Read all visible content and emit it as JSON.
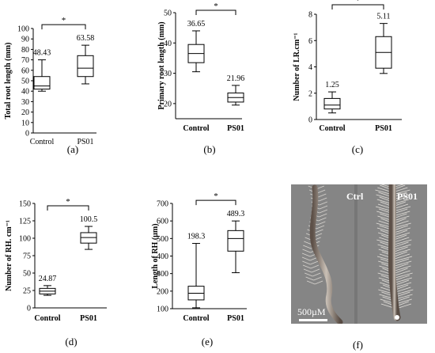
{
  "chart_data": [
    {
      "type": "box",
      "panel_label": "(a)",
      "ylabel": "Total root length (mm)",
      "categories": [
        "Control",
        "PS01"
      ],
      "category_style": "normal",
      "ylim": [
        0,
        100
      ],
      "yticks": [
        0,
        10,
        20,
        30,
        40,
        50,
        60,
        70,
        80,
        90,
        100
      ],
      "boxes": [
        {
          "category": "Control",
          "min": 40,
          "q1": 42,
          "median": 45,
          "q3": 54,
          "max": 70,
          "mean_label": "48.43"
        },
        {
          "category": "PS01",
          "min": 47,
          "q1": 54,
          "median": 62,
          "q3": 74,
          "max": 84,
          "mean_label": "63.58"
        }
      ],
      "significance": "*"
    },
    {
      "type": "box",
      "panel_label": "(b)",
      "ylabel": "Primary root length (mm)",
      "categories": [
        "Control",
        "PS01"
      ],
      "category_style": "bold",
      "ylim": [
        15,
        50
      ],
      "yticks": [
        20,
        30,
        40,
        50
      ],
      "boxes": [
        {
          "category": "Control",
          "min": 30.5,
          "q1": 33.5,
          "median": 36.5,
          "q3": 39.5,
          "max": 44,
          "mean_label": "36.65"
        },
        {
          "category": "PS01",
          "min": 19.5,
          "q1": 20.5,
          "median": 22,
          "q3": 23.5,
          "max": 26,
          "mean_label": "21.96"
        }
      ],
      "significance": "*"
    },
    {
      "type": "box",
      "panel_label": "(c)",
      "ylabel": "Number of LR.cm⁻¹",
      "categories": [
        "Control",
        "PS01"
      ],
      "category_style": "bold",
      "ylim": [
        0,
        8
      ],
      "yticks": [
        0,
        2,
        4,
        6,
        8
      ],
      "boxes": [
        {
          "category": "Control",
          "min": 0.5,
          "q1": 0.8,
          "median": 1.1,
          "q3": 1.6,
          "max": 2.1,
          "mean_label": "1.25"
        },
        {
          "category": "PS01",
          "min": 3.5,
          "q1": 3.9,
          "median": 5.1,
          "q3": 6.3,
          "max": 7.3,
          "mean_label": "5.11"
        }
      ],
      "significance": "*"
    },
    {
      "type": "box",
      "panel_label": "(d)",
      "ylabel": "Number of RH. cm⁻¹",
      "categories": [
        "Control",
        "PS01"
      ],
      "category_style": "bold",
      "ylim": [
        0,
        150
      ],
      "yticks": [
        0,
        25,
        50,
        75,
        100,
        125,
        150
      ],
      "boxes": [
        {
          "category": "Control",
          "min": 18,
          "q1": 20,
          "median": 24,
          "q3": 28,
          "max": 32,
          "mean_label": "24.87"
        },
        {
          "category": "PS01",
          "min": 84,
          "q1": 93,
          "median": 101,
          "q3": 108,
          "max": 117,
          "mean_label": "100.5"
        }
      ],
      "significance": "*"
    },
    {
      "type": "box",
      "panel_label": "(e)",
      "ylabel": "Length of RH (µm)",
      "categories": [
        "Control",
        "PS01"
      ],
      "category_style": "bold",
      "ylim": [
        100,
        700
      ],
      "yticks": [
        100,
        200,
        300,
        400,
        500,
        600,
        700
      ],
      "boxes": [
        {
          "category": "Control",
          "min": 105,
          "q1": 150,
          "median": 188,
          "q3": 228,
          "max": 472,
          "mean_label": "198.3"
        },
        {
          "category": "PS01",
          "min": 305,
          "q1": 428,
          "median": 500,
          "q3": 545,
          "max": 600,
          "mean_label": "489.3"
        }
      ],
      "significance": "*"
    }
  ],
  "photo_panel": {
    "panel_label": "(f)",
    "left_label": "Ctrl",
    "right_label": "PS01",
    "scale_label": "500µM"
  }
}
